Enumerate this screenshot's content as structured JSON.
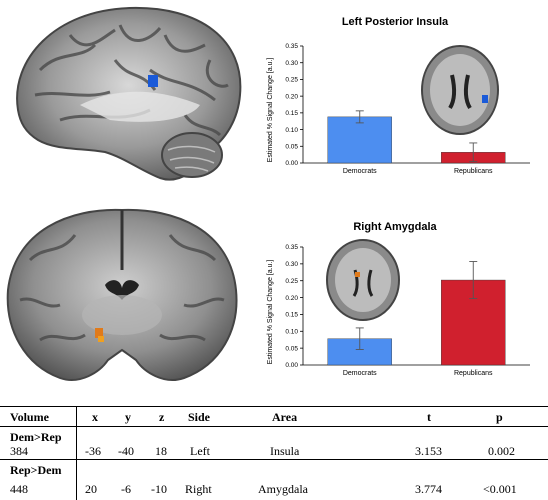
{
  "charts": [
    {
      "title": "Left Posterior Insula",
      "ylabel": "Estimated % Signal Change [a.u.]",
      "yticks": [
        "0.00",
        "0.05",
        "0.10",
        "0.15",
        "0.20",
        "0.25",
        "0.30",
        "0.35"
      ],
      "ylim": [
        0,
        0.35
      ],
      "categories": [
        "Democrats",
        "Republicans"
      ],
      "values": [
        0.138,
        0.032
      ],
      "errors": [
        0.018,
        0.028
      ],
      "colors": [
        "#4d8ef0",
        "#d0202e"
      ]
    },
    {
      "title": "Right Amygdala",
      "ylabel": "Estimated % Signal Change [a.u.]",
      "yticks": [
        "0.00",
        "0.05",
        "0.10",
        "0.15",
        "0.20",
        "0.25",
        "0.30",
        "0.35"
      ],
      "ylim": [
        0,
        0.35
      ],
      "categories": [
        "Democrats",
        "Republicans"
      ],
      "values": [
        0.078,
        0.252
      ],
      "errors": [
        0.032,
        0.055
      ],
      "colors": [
        "#4d8ef0",
        "#d0202e"
      ]
    }
  ],
  "table": {
    "headers": [
      "Volume",
      "x",
      "y",
      "z",
      "Side",
      "Area",
      "t",
      "p"
    ],
    "groups": [
      {
        "label": "Dem>Rep",
        "row": [
          "384",
          "-36",
          "-40",
          "18",
          "Left",
          "Insula",
          "3.153",
          "0.002"
        ]
      },
      {
        "label": "Rep>Dem",
        "row": [
          "448",
          "20",
          "-6",
          "-10",
          "Right",
          "Amygdala",
          "3.774",
          "<0.001"
        ]
      }
    ]
  }
}
